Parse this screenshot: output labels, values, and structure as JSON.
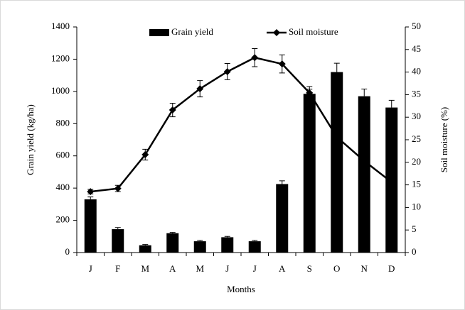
{
  "chart_data": {
    "type": "bar-line",
    "categories": [
      "J",
      "F",
      "M",
      "A",
      "M",
      "J",
      "J",
      "A",
      "S",
      "O",
      "N",
      "D"
    ],
    "xlabel": "Months",
    "ylabel": "Grain yield (kg/ha)",
    "y2label": "Soil moisture (%)",
    "ylim": [
      0,
      1400
    ],
    "yticks": [
      0,
      200,
      400,
      600,
      800,
      1000,
      1200,
      1400
    ],
    "y2lim": [
      0,
      50
    ],
    "y2ticks": [
      0,
      5,
      10,
      15,
      20,
      25,
      30,
      35,
      40,
      45,
      50
    ],
    "legend": "top",
    "series": [
      {
        "name": "Grain yield",
        "type": "bar",
        "color": "#000000",
        "values": [
          330,
          145,
          45,
          120,
          70,
          95,
          70,
          425,
          985,
          1120,
          970,
          900
        ],
        "errors": [
          15,
          10,
          5,
          5,
          5,
          5,
          5,
          20,
          45,
          55,
          45,
          45
        ]
      },
      {
        "name": "Soil moisture",
        "type": "line",
        "color": "#000000",
        "axis": "y2",
        "values": [
          13.5,
          14.2,
          21.7,
          31.6,
          36.3,
          40.1,
          43.2,
          41.8,
          35.4,
          25.6,
          20.3,
          15.6
        ],
        "errors": [
          0.5,
          0.7,
          1.2,
          1.5,
          1.8,
          1.8,
          2,
          2,
          0.8,
          null,
          null,
          null
        ]
      }
    ]
  }
}
